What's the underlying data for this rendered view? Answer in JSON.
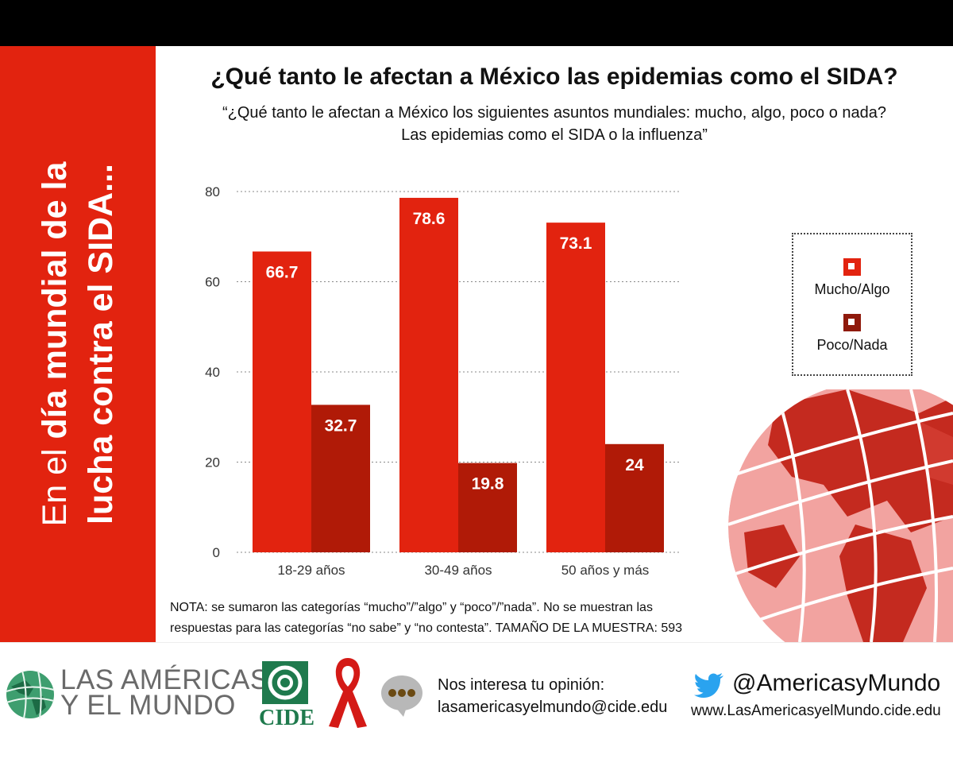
{
  "sidebar": {
    "line1_light": "En el ",
    "line1_bold": "día mundial de la",
    "line2_bold": "lucha contra el SIDA..."
  },
  "header": {
    "title": "¿Qué tanto le afectan a México las epidemias como el SIDA?",
    "subtitle_line1": "“¿Qué tanto le afectan a México los siguientes asuntos mundiales: mucho, algo, poco o nada?",
    "subtitle_line2": "Las epidemias como el SIDA o la influenza”"
  },
  "chart_data": {
    "type": "bar",
    "title": "¿Qué tanto le afectan a México las epidemias como el SIDA?",
    "categories": [
      "18-29 años",
      "30-49 años",
      "50 años y más"
    ],
    "series": [
      {
        "name": "Mucho/Algo",
        "values": [
          66.7,
          78.6,
          73.1
        ],
        "color": "#e2230f"
      },
      {
        "name": "Poco/Nada",
        "values": [
          32.7,
          19.8,
          24
        ],
        "color": "#b01a07"
      }
    ],
    "ylim": [
      0,
      80
    ],
    "yticks": [
      0,
      20,
      40,
      60,
      80
    ],
    "grid": true,
    "legend_position": "right"
  },
  "legend": {
    "items": [
      {
        "label": "Mucho/Algo",
        "color": "#e2230f"
      },
      {
        "label": "Poco/Nada",
        "color": "#8f1a0c"
      }
    ]
  },
  "note": {
    "line1": "NOTA: se sumaron las categorías “mucho”/”algo” y “poco”/”nada”. No se muestran las",
    "line2": "respuestas para las categorías “no sabe” y “no contesta”. TAMAÑO DE LA MUESTRA: 593"
  },
  "footer": {
    "logo_line1": "LAS AMÉRICAS",
    "logo_line2": "Y EL MUNDO",
    "cide": "CIDE",
    "contact_line1": "Nos interesa tu opinión:",
    "contact_line2": "lasamericasyelmundo@cide.edu",
    "twitter_handle": "@AmericasyMundo",
    "website": "www.LasAmericasyelMundo.cide.edu"
  }
}
